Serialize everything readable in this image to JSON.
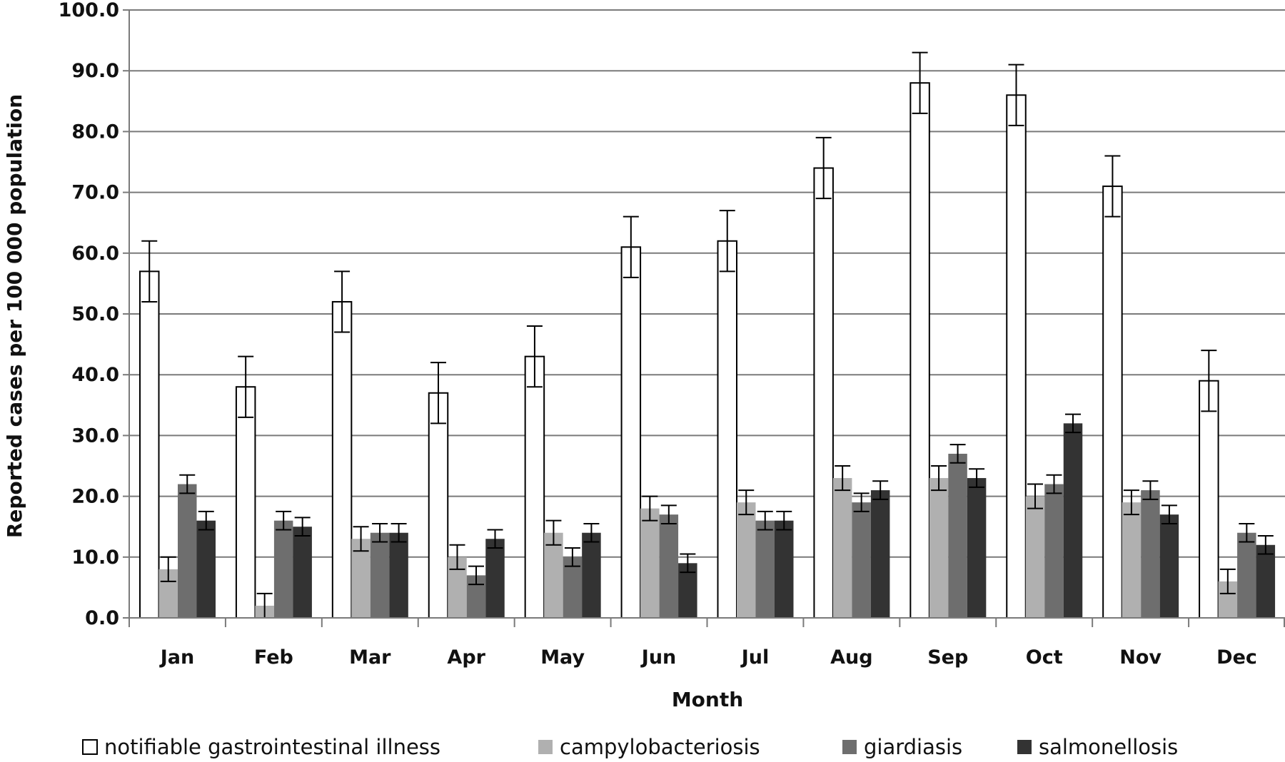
{
  "chart_data": {
    "type": "bar",
    "title": "",
    "xlabel": "Month",
    "ylabel": "Reported cases per 100 000 population",
    "ylim": [
      0,
      100
    ],
    "yticks": [
      "0.0",
      "10.0",
      "20.0",
      "30.0",
      "40.0",
      "50.0",
      "60.0",
      "70.0",
      "80.0",
      "90.0",
      "100.0"
    ],
    "categories": [
      "Jan",
      "Feb",
      "Mar",
      "Apr",
      "May",
      "Jun",
      "Jul",
      "Aug",
      "Sep",
      "Oct",
      "Nov",
      "Dec"
    ],
    "grid": true,
    "legend_position": "bottom",
    "series": [
      {
        "name": "notifiable gastrointestinal illness",
        "color": "#ffffff",
        "values": [
          57,
          38,
          52,
          37,
          43,
          61,
          62,
          74,
          88,
          86,
          71,
          39
        ],
        "error": [
          5,
          5,
          5,
          5,
          5,
          5,
          5,
          5,
          5,
          5,
          5,
          5
        ]
      },
      {
        "name": "campylobacteriosis",
        "color": "#b0b0b0",
        "values": [
          8,
          2,
          13,
          10,
          14,
          18,
          19,
          23,
          23,
          20,
          19,
          6
        ],
        "error": [
          2,
          2,
          2,
          2,
          2,
          2,
          2,
          2,
          2,
          2,
          2,
          2
        ]
      },
      {
        "name": "giardiasis",
        "color": "#6e6e6e",
        "values": [
          22,
          16,
          14,
          7,
          10,
          17,
          16,
          19,
          27,
          22,
          21,
          14
        ],
        "error": [
          1.5,
          1.5,
          1.5,
          1.5,
          1.5,
          1.5,
          1.5,
          1.5,
          1.5,
          1.5,
          1.5,
          1.5
        ]
      },
      {
        "name": "salmonellosis",
        "color": "#333333",
        "values": [
          16,
          15,
          14,
          13,
          14,
          9,
          16,
          21,
          23,
          32,
          17,
          12
        ],
        "error": [
          1.5,
          1.5,
          1.5,
          1.5,
          1.5,
          1.5,
          1.5,
          1.5,
          1.5,
          1.5,
          1.5,
          1.5
        ]
      }
    ]
  }
}
